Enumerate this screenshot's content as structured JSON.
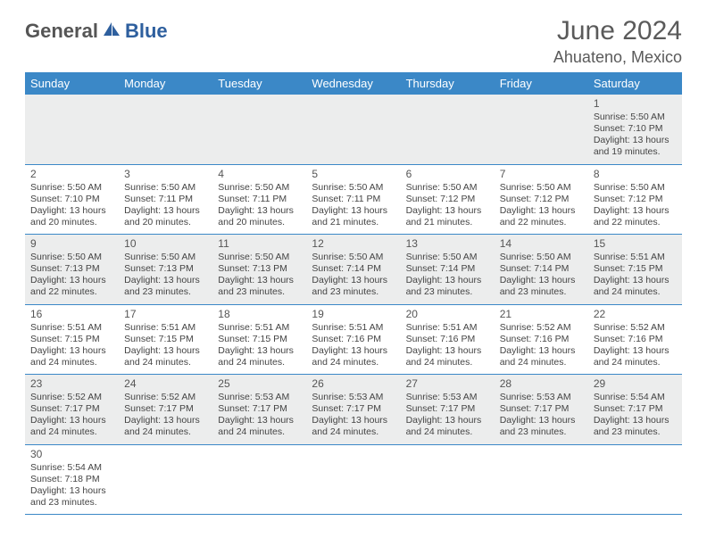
{
  "logo": {
    "part1": "General",
    "part2": "Blue"
  },
  "title": "June 2024",
  "location": "Ahuateno, Mexico",
  "header_bg": "#3b88c7",
  "header_fg": "#ffffff",
  "row_even_bg": "#eceded",
  "row_odd_bg": "#ffffff",
  "divider_color": "#3b88c7",
  "days": [
    "Sunday",
    "Monday",
    "Tuesday",
    "Wednesday",
    "Thursday",
    "Friday",
    "Saturday"
  ],
  "weeks": [
    [
      null,
      null,
      null,
      null,
      null,
      null,
      {
        "n": 1,
        "sr": "5:50 AM",
        "ss": "7:10 PM",
        "dl": "13 hours and 19 minutes."
      }
    ],
    [
      {
        "n": 2,
        "sr": "5:50 AM",
        "ss": "7:10 PM",
        "dl": "13 hours and 20 minutes."
      },
      {
        "n": 3,
        "sr": "5:50 AM",
        "ss": "7:11 PM",
        "dl": "13 hours and 20 minutes."
      },
      {
        "n": 4,
        "sr": "5:50 AM",
        "ss": "7:11 PM",
        "dl": "13 hours and 20 minutes."
      },
      {
        "n": 5,
        "sr": "5:50 AM",
        "ss": "7:11 PM",
        "dl": "13 hours and 21 minutes."
      },
      {
        "n": 6,
        "sr": "5:50 AM",
        "ss": "7:12 PM",
        "dl": "13 hours and 21 minutes."
      },
      {
        "n": 7,
        "sr": "5:50 AM",
        "ss": "7:12 PM",
        "dl": "13 hours and 22 minutes."
      },
      {
        "n": 8,
        "sr": "5:50 AM",
        "ss": "7:12 PM",
        "dl": "13 hours and 22 minutes."
      }
    ],
    [
      {
        "n": 9,
        "sr": "5:50 AM",
        "ss": "7:13 PM",
        "dl": "13 hours and 22 minutes."
      },
      {
        "n": 10,
        "sr": "5:50 AM",
        "ss": "7:13 PM",
        "dl": "13 hours and 23 minutes."
      },
      {
        "n": 11,
        "sr": "5:50 AM",
        "ss": "7:13 PM",
        "dl": "13 hours and 23 minutes."
      },
      {
        "n": 12,
        "sr": "5:50 AM",
        "ss": "7:14 PM",
        "dl": "13 hours and 23 minutes."
      },
      {
        "n": 13,
        "sr": "5:50 AM",
        "ss": "7:14 PM",
        "dl": "13 hours and 23 minutes."
      },
      {
        "n": 14,
        "sr": "5:50 AM",
        "ss": "7:14 PM",
        "dl": "13 hours and 23 minutes."
      },
      {
        "n": 15,
        "sr": "5:51 AM",
        "ss": "7:15 PM",
        "dl": "13 hours and 24 minutes."
      }
    ],
    [
      {
        "n": 16,
        "sr": "5:51 AM",
        "ss": "7:15 PM",
        "dl": "13 hours and 24 minutes."
      },
      {
        "n": 17,
        "sr": "5:51 AM",
        "ss": "7:15 PM",
        "dl": "13 hours and 24 minutes."
      },
      {
        "n": 18,
        "sr": "5:51 AM",
        "ss": "7:15 PM",
        "dl": "13 hours and 24 minutes."
      },
      {
        "n": 19,
        "sr": "5:51 AM",
        "ss": "7:16 PM",
        "dl": "13 hours and 24 minutes."
      },
      {
        "n": 20,
        "sr": "5:51 AM",
        "ss": "7:16 PM",
        "dl": "13 hours and 24 minutes."
      },
      {
        "n": 21,
        "sr": "5:52 AM",
        "ss": "7:16 PM",
        "dl": "13 hours and 24 minutes."
      },
      {
        "n": 22,
        "sr": "5:52 AM",
        "ss": "7:16 PM",
        "dl": "13 hours and 24 minutes."
      }
    ],
    [
      {
        "n": 23,
        "sr": "5:52 AM",
        "ss": "7:17 PM",
        "dl": "13 hours and 24 minutes."
      },
      {
        "n": 24,
        "sr": "5:52 AM",
        "ss": "7:17 PM",
        "dl": "13 hours and 24 minutes."
      },
      {
        "n": 25,
        "sr": "5:53 AM",
        "ss": "7:17 PM",
        "dl": "13 hours and 24 minutes."
      },
      {
        "n": 26,
        "sr": "5:53 AM",
        "ss": "7:17 PM",
        "dl": "13 hours and 24 minutes."
      },
      {
        "n": 27,
        "sr": "5:53 AM",
        "ss": "7:17 PM",
        "dl": "13 hours and 24 minutes."
      },
      {
        "n": 28,
        "sr": "5:53 AM",
        "ss": "7:17 PM",
        "dl": "13 hours and 23 minutes."
      },
      {
        "n": 29,
        "sr": "5:54 AM",
        "ss": "7:17 PM",
        "dl": "13 hours and 23 minutes."
      }
    ],
    [
      {
        "n": 30,
        "sr": "5:54 AM",
        "ss": "7:18 PM",
        "dl": "13 hours and 23 minutes."
      },
      null,
      null,
      null,
      null,
      null,
      null
    ]
  ],
  "labels": {
    "sunrise": "Sunrise:",
    "sunset": "Sunset:",
    "daylight": "Daylight:"
  }
}
